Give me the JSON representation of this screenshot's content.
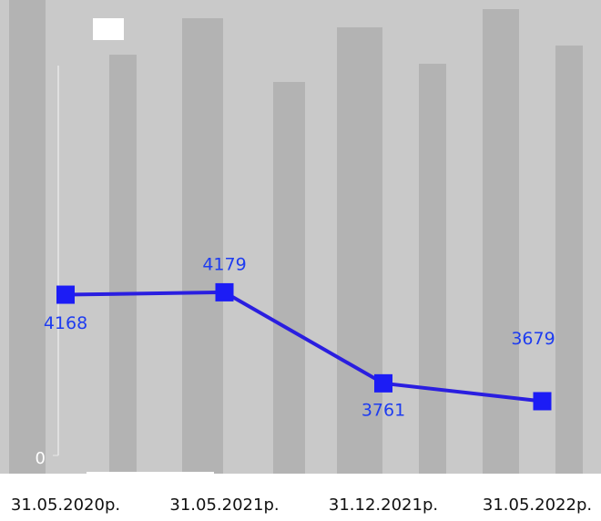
{
  "chart_data": {
    "type": "line",
    "categories": [
      "31.05.2020р.",
      "31.05.2021р.",
      "31.12.2021р.",
      "31.05.2022р."
    ],
    "values": [
      4168,
      4179,
      3761,
      3679
    ],
    "color": "#2a1ee0",
    "ylim": [
      3430,
      5220
    ],
    "yticks": [
      {
        "value": 3430,
        "label": "0"
      }
    ]
  }
}
